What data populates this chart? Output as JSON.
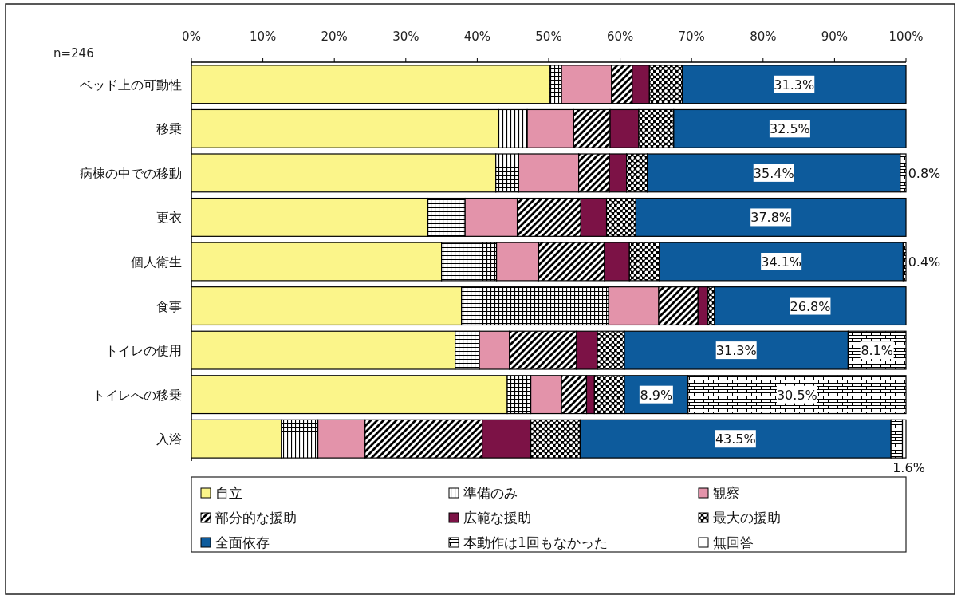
{
  "chart_data": {
    "type": "bar",
    "orientation": "horizontal",
    "stacked": true,
    "annotations": [
      "n=246"
    ],
    "categories": [
      "ベッド上の可動性",
      "移乗",
      "病棟の中での移動",
      "更衣",
      "個人衛生",
      "食事",
      "トイレの使用",
      "トイレへの移乗",
      "入浴"
    ],
    "xlim": [
      0,
      100
    ],
    "xticks": [
      {
        "value": 0,
        "label": "0%"
      },
      {
        "value": 10,
        "label": "10%"
      },
      {
        "value": 20,
        "label": "20%"
      },
      {
        "value": 30,
        "label": "30%"
      },
      {
        "value": 40,
        "label": "40%"
      },
      {
        "value": 50,
        "label": "50%"
      },
      {
        "value": 60,
        "label": "60%"
      },
      {
        "value": 70,
        "label": "70%"
      },
      {
        "value": 80,
        "label": "80%"
      },
      {
        "value": 90,
        "label": "90%"
      },
      {
        "value": 100,
        "label": "100%"
      }
    ],
    "legend": "bottom",
    "grid": false,
    "series": [
      {
        "name": "自立",
        "color": "#fbf58a",
        "values": [
          50.2,
          43.0,
          42.6,
          33.1,
          35.0,
          37.8,
          36.9,
          44.2,
          12.6
        ]
      },
      {
        "name": "準備のみ",
        "color": "#000000",
        "values": [
          1.6,
          4.0,
          3.2,
          5.2,
          7.7,
          20.6,
          3.4,
          3.3,
          5.1
        ]
      },
      {
        "name": "観察",
        "color": "#e393aa",
        "values": [
          7.0,
          6.5,
          8.4,
          7.3,
          5.9,
          7.0,
          4.2,
          4.3,
          6.6
        ]
      },
      {
        "name": "部分的な援助",
        "color": "#000000",
        "values": [
          2.9,
          5.1,
          4.3,
          8.9,
          9.2,
          5.5,
          9.4,
          3.5,
          16.4
        ]
      },
      {
        "name": "広範な援助",
        "color": "#7c1246",
        "values": [
          2.4,
          4.0,
          2.4,
          3.6,
          3.5,
          1.4,
          2.9,
          1.1,
          6.8
        ]
      },
      {
        "name": "最大の援助",
        "color": "#000000",
        "values": [
          4.6,
          4.9,
          2.9,
          4.1,
          4.2,
          0.9,
          3.8,
          4.2,
          6.9
        ]
      },
      {
        "name": "全面依存",
        "color": "#0d5b9c",
        "values": [
          31.3,
          32.5,
          35.4,
          37.8,
          34.1,
          26.8,
          31.3,
          8.9,
          43.5
        ],
        "value_labels": [
          "31.3%",
          "32.5%",
          "35.4%",
          "37.8%",
          "34.1%",
          "26.8%",
          "31.3%",
          "8.9%",
          "43.5%"
        ]
      },
      {
        "name": "本動作は1回もなかった",
        "color": "#000000",
        "values": [
          0,
          0,
          0.8,
          0,
          0.4,
          0,
          8.1,
          30.5,
          1.6
        ],
        "value_labels": [
          null,
          null,
          "0.8%",
          null,
          "0.4%",
          null,
          "8.1%",
          "30.5%",
          "1.6%"
        ]
      },
      {
        "name": "無回答",
        "color": "#ffffff",
        "values": [
          0,
          0,
          0,
          0,
          0,
          0,
          0,
          0,
          0.5
        ]
      }
    ]
  }
}
